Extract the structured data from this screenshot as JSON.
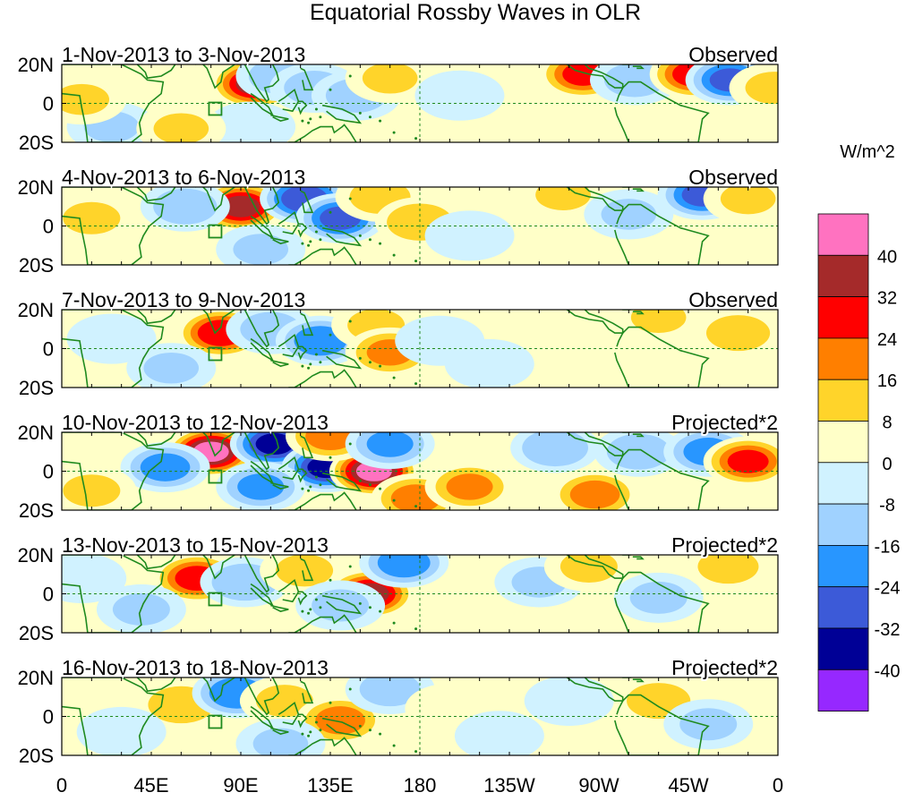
{
  "title": "Equatorial Rossby Waves in OLR",
  "chart_data": {
    "type": "heatmap",
    "title": "Equatorial Rossby Waves in OLR",
    "xlabel": "",
    "ylabel": "",
    "x_ticks": [
      "0",
      "45E",
      "90E",
      "135E",
      "180",
      "135W",
      "90W",
      "45W",
      "0"
    ],
    "x_tick_values": [
      0,
      45,
      90,
      135,
      180,
      225,
      270,
      315,
      360
    ],
    "y_ticks": [
      "20N",
      "0",
      "20S"
    ],
    "y_tick_values": [
      20,
      0,
      -20
    ],
    "xlim": [
      0,
      360
    ],
    "ylim": [
      -20,
      20
    ],
    "colorbar": {
      "units": "W/m^2",
      "labels": [
        "40",
        "32",
        "24",
        "16",
        "8",
        "0",
        "-8",
        "-16",
        "-24",
        "-32",
        "-40"
      ],
      "colors": [
        "#ff72c0",
        "#a52a2a",
        "#ff0000",
        "#ff7f00",
        "#ffd42a",
        "#ffffc8",
        "#d0f2ff",
        "#a0d2ff",
        "#2896ff",
        "#3c5ad8",
        "#000096",
        "#9628ff"
      ]
    },
    "panels": [
      {
        "period": "1-Nov-2013 to 3-Nov-2013",
        "kind": "Observed",
        "blobs": [
          {
            "lon": 97,
            "lat": 10,
            "value": 34
          },
          {
            "lon": 110,
            "lat": 14,
            "value": -14
          },
          {
            "lon": 127,
            "lat": 8,
            "value": -12
          },
          {
            "lon": 148,
            "lat": 4,
            "value": -12
          },
          {
            "lon": 95,
            "lat": -12,
            "value": -8
          },
          {
            "lon": 165,
            "lat": 13,
            "value": 9
          },
          {
            "lon": 200,
            "lat": 4,
            "value": -7
          },
          {
            "lon": 262,
            "lat": 15,
            "value": 26
          },
          {
            "lon": 288,
            "lat": 12,
            "value": -12
          },
          {
            "lon": 318,
            "lat": 15,
            "value": 28
          },
          {
            "lon": 336,
            "lat": 12,
            "value": -26
          },
          {
            "lon": 358,
            "lat": 8,
            "value": 10
          },
          {
            "lon": 25,
            "lat": -12,
            "value": -9
          },
          {
            "lon": 60,
            "lat": -13,
            "value": 9
          },
          {
            "lon": 10,
            "lat": 2,
            "value": 9
          }
        ]
      },
      {
        "period": "4-Nov-2013 to 6-Nov-2013",
        "kind": "Observed",
        "blobs": [
          {
            "lon": 90,
            "lat": 10,
            "value": 34
          },
          {
            "lon": 62,
            "lat": 10,
            "value": -14
          },
          {
            "lon": 122,
            "lat": 14,
            "value": -30
          },
          {
            "lon": 140,
            "lat": 4,
            "value": -26
          },
          {
            "lon": 160,
            "lat": 15,
            "value": 12
          },
          {
            "lon": 180,
            "lat": 2,
            "value": 16
          },
          {
            "lon": 205,
            "lat": -5,
            "value": -8
          },
          {
            "lon": 252,
            "lat": 16,
            "value": 9
          },
          {
            "lon": 285,
            "lat": 6,
            "value": -9
          },
          {
            "lon": 322,
            "lat": 16,
            "value": -26
          },
          {
            "lon": 345,
            "lat": 14,
            "value": 9
          },
          {
            "lon": 15,
            "lat": 4,
            "value": 10
          },
          {
            "lon": 100,
            "lat": -12,
            "value": -9
          }
        ]
      },
      {
        "period": "7-Nov-2013 to 9-Nov-2013",
        "kind": "Observed",
        "blobs": [
          {
            "lon": 80,
            "lat": 8,
            "value": 30
          },
          {
            "lon": 105,
            "lat": 10,
            "value": -12
          },
          {
            "lon": 130,
            "lat": 4,
            "value": -22
          },
          {
            "lon": 158,
            "lat": 12,
            "value": 10
          },
          {
            "lon": 165,
            "lat": -2,
            "value": 18
          },
          {
            "lon": 190,
            "lat": 4,
            "value": -7
          },
          {
            "lon": 255,
            "lat": 12,
            "value": 8
          },
          {
            "lon": 300,
            "lat": 16,
            "value": 9
          },
          {
            "lon": 340,
            "lat": 8,
            "value": 14
          },
          {
            "lon": 55,
            "lat": -10,
            "value": -9
          },
          {
            "lon": 25,
            "lat": 5,
            "value": -7
          },
          {
            "lon": 215,
            "lat": -8,
            "value": -7
          }
        ]
      },
      {
        "period": "10-Nov-2013 to 12-Nov-2013",
        "kind": "Projected*2",
        "blobs": [
          {
            "lon": 75,
            "lat": 10,
            "value": 42
          },
          {
            "lon": 107,
            "lat": 14,
            "value": -34
          },
          {
            "lon": 133,
            "lat": 2,
            "value": -34
          },
          {
            "lon": 157,
            "lat": 0,
            "value": 42
          },
          {
            "lon": 135,
            "lat": 18,
            "value": 20
          },
          {
            "lon": 52,
            "lat": 2,
            "value": -20
          },
          {
            "lon": 100,
            "lat": -8,
            "value": -18
          },
          {
            "lon": 165,
            "lat": 14,
            "value": -18
          },
          {
            "lon": 178,
            "lat": -14,
            "value": 20
          },
          {
            "lon": 205,
            "lat": -8,
            "value": 18
          },
          {
            "lon": 248,
            "lat": 12,
            "value": -16
          },
          {
            "lon": 268,
            "lat": -12,
            "value": 20
          },
          {
            "lon": 290,
            "lat": 10,
            "value": -14
          },
          {
            "lon": 325,
            "lat": 10,
            "value": -20
          },
          {
            "lon": 345,
            "lat": 5,
            "value": 26
          },
          {
            "lon": 15,
            "lat": -10,
            "value": 10
          }
        ]
      },
      {
        "period": "13-Nov-2013 to 15-Nov-2013",
        "kind": "Projected*2",
        "blobs": [
          {
            "lon": 68,
            "lat": 8,
            "value": 28
          },
          {
            "lon": 92,
            "lat": 6,
            "value": -16
          },
          {
            "lon": 122,
            "lat": 12,
            "value": 10
          },
          {
            "lon": 155,
            "lat": 0,
            "value": 34
          },
          {
            "lon": 172,
            "lat": 16,
            "value": -22
          },
          {
            "lon": 140,
            "lat": -6,
            "value": -10
          },
          {
            "lon": 240,
            "lat": 6,
            "value": -9
          },
          {
            "lon": 265,
            "lat": 14,
            "value": 10
          },
          {
            "lon": 300,
            "lat": -2,
            "value": -10
          },
          {
            "lon": 335,
            "lat": 14,
            "value": 12
          },
          {
            "lon": 40,
            "lat": -8,
            "value": -10
          },
          {
            "lon": 10,
            "lat": 8,
            "value": -8
          }
        ]
      },
      {
        "period": "16-Nov-2013 to 18-Nov-2013",
        "kind": "Projected*2",
        "blobs": [
          {
            "lon": 60,
            "lat": 6,
            "value": 16
          },
          {
            "lon": 88,
            "lat": 12,
            "value": -24
          },
          {
            "lon": 112,
            "lat": 8,
            "value": 10
          },
          {
            "lon": 140,
            "lat": -2,
            "value": 20
          },
          {
            "lon": 165,
            "lat": 14,
            "value": -12
          },
          {
            "lon": 195,
            "lat": 4,
            "value": 8
          },
          {
            "lon": 255,
            "lat": 8,
            "value": -8
          },
          {
            "lon": 300,
            "lat": 8,
            "value": 14
          },
          {
            "lon": 325,
            "lat": -4,
            "value": -10
          },
          {
            "lon": 30,
            "lat": -8,
            "value": -8
          },
          {
            "lon": 110,
            "lat": -14,
            "value": -9
          },
          {
            "lon": 220,
            "lat": -10,
            "value": -7
          }
        ]
      }
    ]
  }
}
